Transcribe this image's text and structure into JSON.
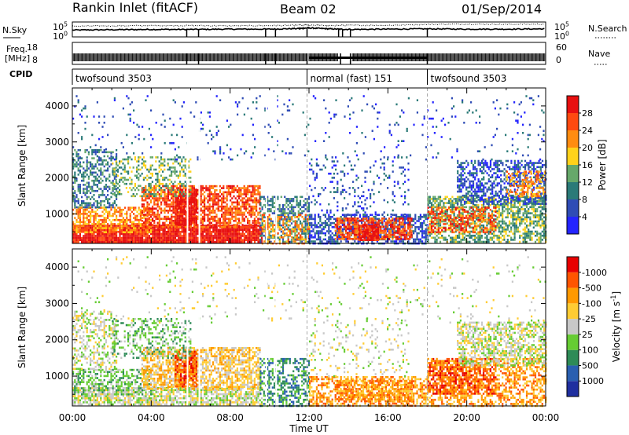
{
  "header": {
    "title": "Rankin Inlet (fitACF)",
    "beam": "Beam 02",
    "date": "01/Sep/2014"
  },
  "chart_data": [
    {
      "type": "line",
      "panel": "noise",
      "left_label": "N.Sky",
      "right_label": "N.Search",
      "left_ticks": [
        "10^5",
        "10^0"
      ],
      "right_ticks": [
        "10^5",
        "10^0"
      ],
      "series": [
        {
          "name": "N.Sky",
          "style": "solid",
          "x": [
            0,
            2,
            4,
            6,
            8,
            10,
            11.5,
            12,
            13,
            14,
            16,
            18,
            20,
            22,
            24
          ],
          "y": [
            2.3,
            2.4,
            2.5,
            2.5,
            2.6,
            2.6,
            2.8,
            3.0,
            2.7,
            2.5,
            2.6,
            2.7,
            2.6,
            2.6,
            2.7
          ]
        },
        {
          "name": "N.Search",
          "style": "dotted",
          "x": [
            0,
            2,
            4,
            6,
            8,
            10,
            11.5,
            12,
            13,
            14,
            16,
            18,
            20,
            22,
            24
          ],
          "y": [
            3.6,
            3.7,
            3.8,
            3.8,
            3.7,
            3.8,
            3.9,
            4.0,
            3.8,
            3.9,
            3.9,
            4.2,
            4.3,
            4.2,
            4.3
          ]
        }
      ]
    },
    {
      "type": "line",
      "panel": "frequency",
      "left_label": "Freq.",
      "left_unit": "[MHz]",
      "right_label": "Nave",
      "left_ticks": [
        "18",
        "8"
      ],
      "right_ticks": [
        "60",
        "0"
      ],
      "series": [
        {
          "name": "Freq.",
          "style": "solid",
          "x": [
            0,
            24
          ],
          "y": [
            10,
            10
          ]
        },
        {
          "name": "Nave",
          "style": "dotted",
          "x": [
            0,
            24
          ],
          "y": [
            22,
            22
          ]
        }
      ]
    },
    {
      "type": "table",
      "panel": "cpid",
      "label": "CPID",
      "segments": [
        {
          "start": 0,
          "end": 11.9,
          "text": "twofsound 3503"
        },
        {
          "start": 11.9,
          "end": 18,
          "text": "normal (fast) 151"
        },
        {
          "start": 18,
          "end": 24,
          "text": "twofsound 3503"
        }
      ]
    },
    {
      "type": "heatmap",
      "panel": "power",
      "ylabel": "Slant Range [km]",
      "yticks": [
        1000,
        2000,
        3000,
        4000
      ],
      "ylim": [
        180,
        4500
      ],
      "xlim": [
        0,
        24
      ],
      "colorbar": {
        "label": "Power [dB]",
        "ticks": [
          "4",
          "8",
          "12",
          "16",
          "20",
          "24",
          "28"
        ],
        "colors": [
          "#2424ff",
          "#2f4cb5",
          "#2a7a78",
          "#66a86a",
          "#ffd21a",
          "#ff8c10",
          "#ff4a10",
          "#e81010"
        ]
      },
      "regions": [
        {
          "t0": 0,
          "t1": 9.6,
          "r0": 200,
          "r1": 700,
          "c": 7,
          "d": 0.95
        },
        {
          "t0": 0,
          "t1": 4,
          "r0": 500,
          "r1": 1200,
          "c": 5,
          "d": 0.6
        },
        {
          "t0": 0,
          "t1": 2.2,
          "r0": 1200,
          "r1": 2800,
          "c": 2,
          "d": 0.45
        },
        {
          "t0": 3.5,
          "t1": 9.5,
          "r0": 650,
          "r1": 1800,
          "c": 6,
          "d": 0.65
        },
        {
          "t0": 5.2,
          "t1": 6.3,
          "r0": 700,
          "r1": 1700,
          "c": 7,
          "d": 0.9
        },
        {
          "t0": 2,
          "t1": 6,
          "r0": 1500,
          "r1": 2600,
          "c": 3,
          "d": 0.35
        },
        {
          "t0": 9.5,
          "t1": 12,
          "r0": 200,
          "r1": 1500,
          "c": 2,
          "d": 0.55
        },
        {
          "t0": 9.6,
          "t1": 12,
          "r0": 200,
          "r1": 1000,
          "c": 5,
          "d": 0.4
        },
        {
          "t0": 12,
          "t1": 18,
          "r0": 200,
          "r1": 1000,
          "c": 1,
          "d": 0.55
        },
        {
          "t0": 13.3,
          "t1": 17.2,
          "r0": 300,
          "r1": 900,
          "c": 6,
          "d": 0.7
        },
        {
          "t0": 14.5,
          "t1": 15.5,
          "r0": 300,
          "r1": 700,
          "c": 7,
          "d": 0.85
        },
        {
          "t0": 12,
          "t1": 17,
          "r0": 1000,
          "r1": 2600,
          "c": 1,
          "d": 0.12
        },
        {
          "t0": 18,
          "t1": 24,
          "r0": 200,
          "r1": 1500,
          "c": 3,
          "d": 0.6
        },
        {
          "t0": 18,
          "t1": 21.5,
          "r0": 500,
          "r1": 1200,
          "c": 6,
          "d": 0.5
        },
        {
          "t0": 19.5,
          "t1": 24,
          "r0": 1300,
          "r1": 2500,
          "c": 1,
          "d": 0.5
        },
        {
          "t0": 22,
          "t1": 24,
          "r0": 1500,
          "r1": 2200,
          "c": 5,
          "d": 0.4
        },
        {
          "t0": 0,
          "t1": 24,
          "r0": 2500,
          "r1": 4300,
          "c": 1,
          "d": 0.04
        }
      ]
    },
    {
      "type": "heatmap",
      "panel": "velocity",
      "ylabel": "Slant Range [km]",
      "xlabel": "Time UT",
      "xticks": [
        "00:00",
        "04:00",
        "08:00",
        "12:00",
        "16:00",
        "20:00",
        "00:00"
      ],
      "yticks": [
        1000,
        2000,
        3000,
        4000
      ],
      "ylim": [
        180,
        4500
      ],
      "xlim": [
        0,
        24
      ],
      "colorbar": {
        "label": "Velocity [m s^-1]",
        "ticks": [
          "1000",
          "500",
          "100",
          "25",
          "-25",
          "-100",
          "-500",
          "-1000"
        ],
        "colors": [
          "#1f2f9f",
          "#2a5fb0",
          "#2e8b57",
          "#66cc33",
          "#c8c8c8",
          "#ffcc33",
          "#ff9900",
          "#ff5500",
          "#e80000"
        ]
      },
      "regions": [
        {
          "t0": 0,
          "t1": 9.6,
          "r0": 200,
          "r1": 700,
          "c": 4,
          "d": 0.7
        },
        {
          "t0": 0,
          "t1": 4,
          "r0": 500,
          "r1": 1200,
          "c": 3,
          "d": 0.5
        },
        {
          "t0": 0,
          "t1": 2.2,
          "r0": 1200,
          "r1": 2800,
          "c": 4,
          "d": 0.4
        },
        {
          "t0": 3.5,
          "t1": 9.5,
          "r0": 650,
          "r1": 1800,
          "c": 5,
          "d": 0.65
        },
        {
          "t0": 5.2,
          "t1": 6.3,
          "r0": 700,
          "r1": 1700,
          "c": 7,
          "d": 0.8
        },
        {
          "t0": 2,
          "t1": 6,
          "r0": 1500,
          "r1": 2600,
          "c": 3,
          "d": 0.3
        },
        {
          "t0": 9.5,
          "t1": 12,
          "r0": 200,
          "r1": 1500,
          "c": 2,
          "d": 0.45
        },
        {
          "t0": 12,
          "t1": 18,
          "r0": 200,
          "r1": 1000,
          "c": 6,
          "d": 0.55
        },
        {
          "t0": 13.3,
          "t1": 17.2,
          "r0": 300,
          "r1": 900,
          "c": 6,
          "d": 0.6
        },
        {
          "t0": 12,
          "t1": 17,
          "r0": 1000,
          "r1": 2600,
          "c": 4,
          "d": 0.12
        },
        {
          "t0": 18,
          "t1": 24,
          "r0": 200,
          "r1": 1500,
          "c": 6,
          "d": 0.5
        },
        {
          "t0": 18,
          "t1": 21.5,
          "r0": 500,
          "r1": 1500,
          "c": 7,
          "d": 0.6
        },
        {
          "t0": 19.5,
          "t1": 24,
          "r0": 1300,
          "r1": 2500,
          "c": 4,
          "d": 0.55
        },
        {
          "t0": 0,
          "t1": 24,
          "r0": 2500,
          "r1": 4300,
          "c": 4,
          "d": 0.04
        }
      ]
    }
  ]
}
